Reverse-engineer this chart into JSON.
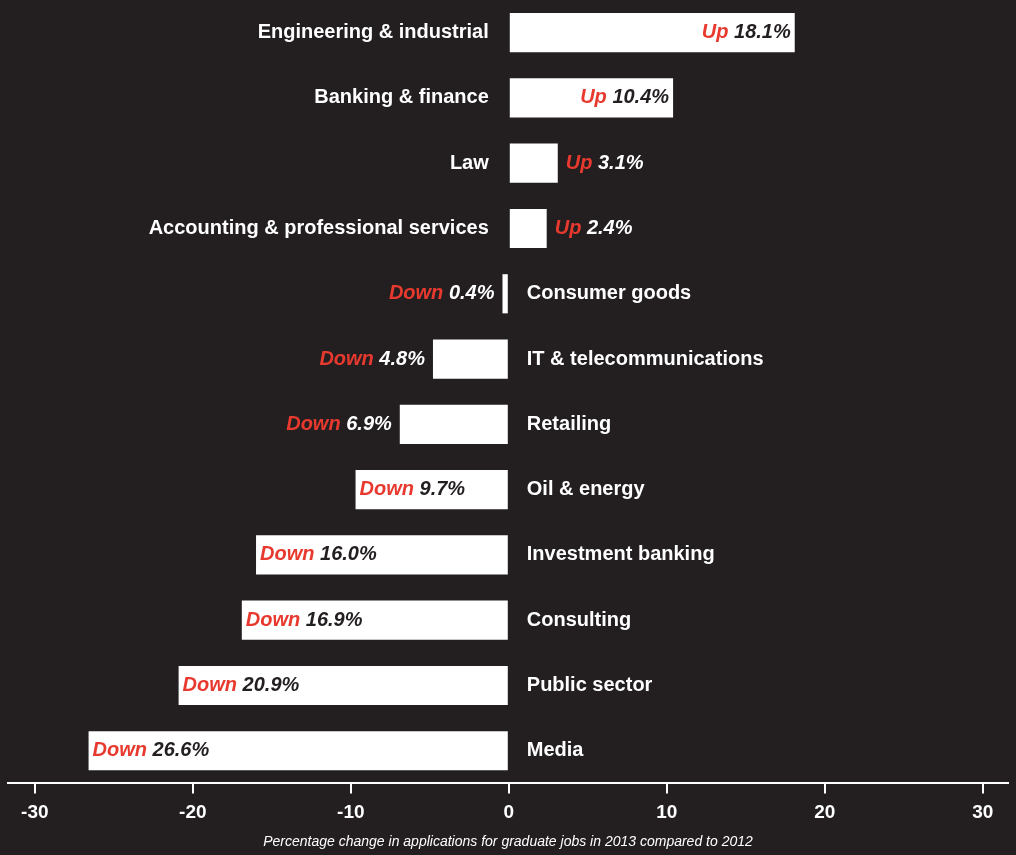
{
  "chart_data": {
    "type": "bar",
    "orientation": "horizontal",
    "xlabel": "Percentage change in applications for graduate jobs in 2013 compared to 2012",
    "categories": [
      "Engineering & industrial",
      "Banking & finance",
      "Law",
      "Accounting & professional services",
      "Consumer goods",
      "IT & telecommunications",
      "Retailing",
      "Oil & energy",
      "Investment banking",
      "Consulting",
      "Public sector",
      "Media"
    ],
    "values": [
      18.1,
      10.4,
      3.1,
      2.4,
      -0.4,
      -4.8,
      -6.9,
      -9.7,
      -16.0,
      -16.9,
      -20.9,
      -26.6
    ],
    "color": "#ffffff",
    "value_labels": [
      "Up 18.1%",
      "Up 10.4%",
      "Up 3.1%",
      "Up 2.4%",
      "Down 0.4%",
      "Down 4.8%",
      "Down 6.9%",
      "Down 9.7%",
      "Down 16.0%",
      "Down 16.9%",
      "Down 20.9%",
      "Down 26.6%"
    ],
    "xlim": [
      -31.7,
      31.6
    ],
    "xticks": [
      -30,
      -20,
      -10,
      0,
      10,
      20,
      30
    ]
  }
}
